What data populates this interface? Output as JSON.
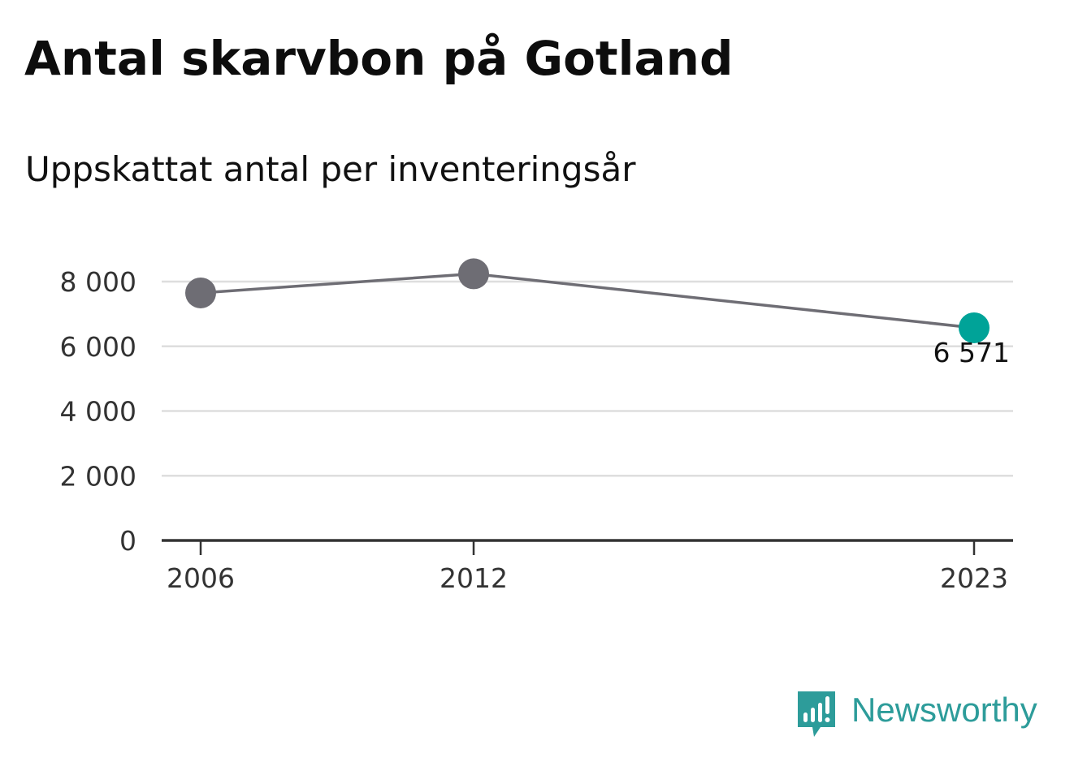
{
  "title": "Antal skarvbon på Gotland",
  "subtitle": "Uppskattat antal per inventeringsår",
  "brand": {
    "name": "Newsworthy",
    "icon": "newsworthy-logo-icon",
    "color": "#2d9c9a"
  },
  "colors": {
    "series": "#6e6d74",
    "highlight": "#00a398",
    "grid": "#dedede",
    "axis": "#333333"
  },
  "chart_data": {
    "type": "line",
    "title": "Antal skarvbon på Gotland",
    "subtitle": "Uppskattat antal per inventeringsår",
    "xlabel": "",
    "ylabel": "",
    "x": [
      2006,
      2012,
      2023
    ],
    "xticks": [
      "2006",
      "2012",
      "2023"
    ],
    "series": [
      {
        "values": [
          7650,
          8240,
          6571
        ]
      }
    ],
    "yticks": [
      0,
      2000,
      4000,
      6000,
      8000
    ],
    "ytick_labels": [
      "0",
      "2 000",
      "4 000",
      "6 000",
      "8 000"
    ],
    "ylim": [
      0,
      8000
    ],
    "xlim": [
      2006,
      2023
    ],
    "grid": true,
    "legend": "none",
    "annotations": [
      {
        "x": 2023,
        "value": 6571,
        "label": "6 571",
        "highlight": true
      }
    ]
  }
}
